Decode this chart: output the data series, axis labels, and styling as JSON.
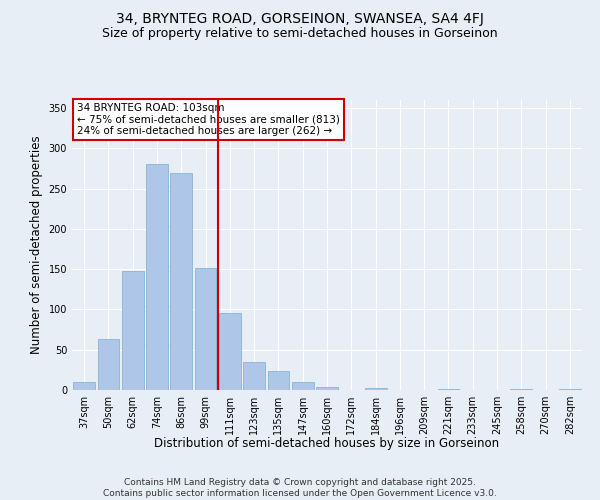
{
  "title_line1": "34, BRYNTEG ROAD, GORSEINON, SWANSEA, SA4 4FJ",
  "title_line2": "Size of property relative to semi-detached houses in Gorseinon",
  "categories": [
    "37sqm",
    "50sqm",
    "62sqm",
    "74sqm",
    "86sqm",
    "99sqm",
    "111sqm",
    "123sqm",
    "135sqm",
    "147sqm",
    "160sqm",
    "172sqm",
    "184sqm",
    "196sqm",
    "209sqm",
    "221sqm",
    "233sqm",
    "245sqm",
    "258sqm",
    "270sqm",
    "282sqm"
  ],
  "values": [
    10,
    63,
    148,
    280,
    270,
    152,
    95,
    35,
    24,
    10,
    4,
    0,
    2,
    0,
    0,
    1,
    0,
    0,
    1,
    0,
    1
  ],
  "bar_color": "#aec6e8",
  "bar_edge_color": "#7aafd4",
  "vline_x": 5.5,
  "vline_color": "#cc0000",
  "ylabel": "Number of semi-detached properties",
  "xlabel": "Distribution of semi-detached houses by size in Gorseinon",
  "ylim": [
    0,
    360
  ],
  "yticks": [
    0,
    50,
    100,
    150,
    200,
    250,
    300,
    350
  ],
  "annotation_title": "34 BRYNTEG ROAD: 103sqm",
  "annotation_line1": "← 75% of semi-detached houses are smaller (813)",
  "annotation_line2": "24% of semi-detached houses are larger (262) →",
  "annotation_color": "#cc0000",
  "footer_line1": "Contains HM Land Registry data © Crown copyright and database right 2025.",
  "footer_line2": "Contains public sector information licensed under the Open Government Licence v3.0.",
  "background_color": "#e8eef5",
  "plot_bg_color": "#e8eef5",
  "grid_color": "#ffffff",
  "title_fontsize": 10,
  "subtitle_fontsize": 9,
  "axis_label_fontsize": 8.5,
  "tick_fontsize": 7,
  "annotation_fontsize": 7.5,
  "footer_fontsize": 6.5
}
